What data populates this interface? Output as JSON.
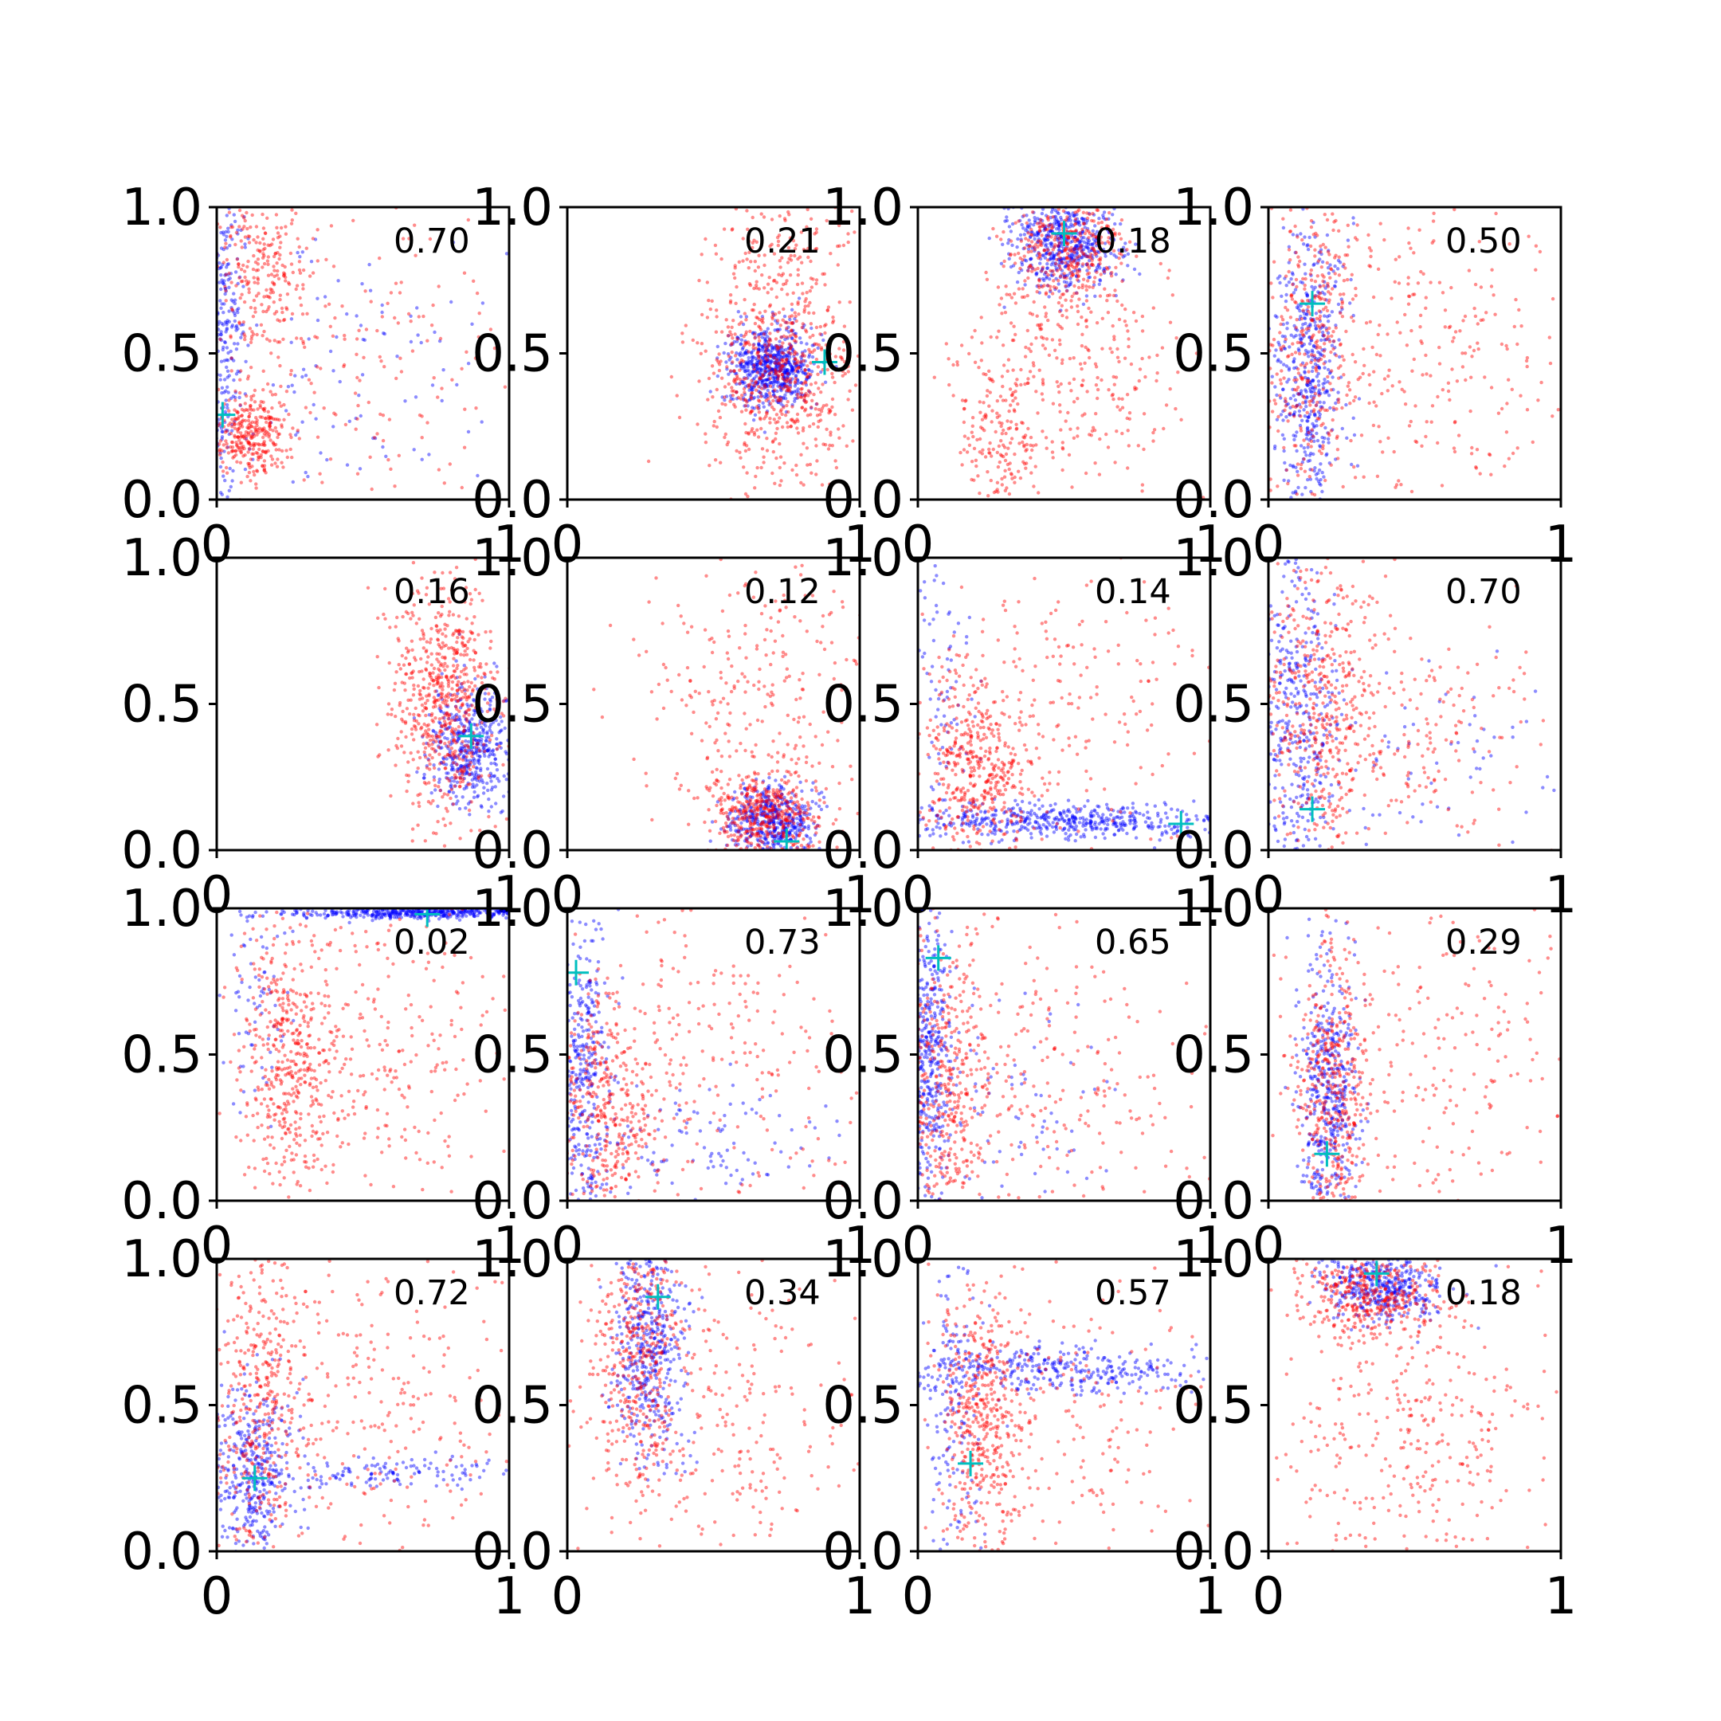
{
  "chart_data": {
    "type": "scatter",
    "layout": "4x4 grid of scatter subplots",
    "colors": {
      "series_a": "#0000ff",
      "series_b": "#ff0000",
      "marker": "#00bfbf",
      "axes": "#000000"
    },
    "xlim": [
      0,
      1
    ],
    "ylim": [
      0,
      1
    ],
    "x_ticks": [
      "0",
      "1"
    ],
    "y_ticks": [
      "0.0",
      "0.5",
      "1.0"
    ],
    "grid": false,
    "legend": "none",
    "panels": [
      {
        "annotation": "0.70",
        "marker": [
          0.02,
          0.29
        ],
        "red": [
          {
            "cx": 0.12,
            "cy": 0.22,
            "sx": 0.07,
            "sy": 0.08,
            "n": 320
          },
          {
            "cx": 0.15,
            "cy": 0.78,
            "sx": 0.09,
            "sy": 0.14,
            "n": 260
          },
          {
            "cx": 0.55,
            "cy": 0.45,
            "sx": 0.3,
            "sy": 0.3,
            "n": 180
          }
        ],
        "blue": [
          {
            "cx": 0.03,
            "cy": 0.55,
            "sx": 0.03,
            "sy": 0.28,
            "n": 260
          },
          {
            "cx": 0.45,
            "cy": 0.45,
            "sx": 0.3,
            "sy": 0.28,
            "n": 120
          }
        ]
      },
      {
        "annotation": "0.21",
        "marker": [
          0.88,
          0.47
        ],
        "red": [
          {
            "cx": 0.72,
            "cy": 0.42,
            "sx": 0.13,
            "sy": 0.17,
            "n": 650
          },
          {
            "cx": 0.75,
            "cy": 0.85,
            "sx": 0.12,
            "sy": 0.12,
            "n": 120
          }
        ],
        "blue": [
          {
            "cx": 0.7,
            "cy": 0.45,
            "sx": 0.07,
            "sy": 0.07,
            "n": 650
          }
        ]
      },
      {
        "annotation": "0.18",
        "marker": [
          0.5,
          0.91
        ],
        "red": [
          {
            "cx": 0.5,
            "cy": 0.85,
            "sx": 0.1,
            "sy": 0.1,
            "n": 350
          },
          {
            "cx": 0.5,
            "cy": 0.45,
            "sx": 0.2,
            "sy": 0.22,
            "n": 350
          },
          {
            "cx": 0.28,
            "cy": 0.2,
            "sx": 0.06,
            "sy": 0.1,
            "n": 120
          }
        ],
        "blue": [
          {
            "cx": 0.5,
            "cy": 0.88,
            "sx": 0.09,
            "sy": 0.08,
            "n": 550
          }
        ]
      },
      {
        "annotation": "0.50",
        "marker": [
          0.15,
          0.67
        ],
        "red": [
          {
            "cx": 0.15,
            "cy": 0.55,
            "sx": 0.08,
            "sy": 0.28,
            "n": 380
          },
          {
            "cx": 0.55,
            "cy": 0.5,
            "sx": 0.25,
            "sy": 0.28,
            "n": 260
          }
        ],
        "blue": [
          {
            "cx": 0.14,
            "cy": 0.45,
            "sx": 0.06,
            "sy": 0.25,
            "n": 480
          }
        ]
      },
      {
        "annotation": "0.16",
        "marker": [
          0.87,
          0.39
        ],
        "red": [
          {
            "cx": 0.78,
            "cy": 0.5,
            "sx": 0.09,
            "sy": 0.2,
            "n": 650
          }
        ],
        "blue": [
          {
            "cx": 0.87,
            "cy": 0.36,
            "sx": 0.07,
            "sy": 0.1,
            "n": 460
          }
        ]
      },
      {
        "annotation": "0.12",
        "marker": [
          0.75,
          0.03
        ],
        "red": [
          {
            "cx": 0.68,
            "cy": 0.12,
            "sx": 0.1,
            "sy": 0.08,
            "n": 450
          },
          {
            "cx": 0.65,
            "cy": 0.55,
            "sx": 0.2,
            "sy": 0.25,
            "n": 260
          }
        ],
        "blue": [
          {
            "cx": 0.7,
            "cy": 0.1,
            "sx": 0.07,
            "sy": 0.06,
            "n": 480
          }
        ]
      },
      {
        "annotation": "0.14",
        "marker": [
          0.9,
          0.09
        ],
        "red": [
          {
            "cx": 0.2,
            "cy": 0.28,
            "sx": 0.1,
            "sy": 0.15,
            "n": 450
          },
          {
            "cx": 0.45,
            "cy": 0.5,
            "sx": 0.28,
            "sy": 0.3,
            "n": 220
          }
        ],
        "blue": [
          {
            "cx": 0.5,
            "cy": 0.1,
            "sx": 0.28,
            "sy": 0.03,
            "n": 500
          },
          {
            "cx": 0.08,
            "cy": 0.6,
            "sx": 0.05,
            "sy": 0.25,
            "n": 80
          }
        ]
      },
      {
        "annotation": "0.70",
        "marker": [
          0.15,
          0.14
        ],
        "red": [
          {
            "cx": 0.18,
            "cy": 0.5,
            "sx": 0.1,
            "sy": 0.25,
            "n": 450
          },
          {
            "cx": 0.5,
            "cy": 0.4,
            "sx": 0.25,
            "sy": 0.2,
            "n": 180
          }
        ],
        "blue": [
          {
            "cx": 0.1,
            "cy": 0.45,
            "sx": 0.07,
            "sy": 0.28,
            "n": 380
          },
          {
            "cx": 0.5,
            "cy": 0.3,
            "sx": 0.25,
            "sy": 0.15,
            "n": 80
          }
        ]
      },
      {
        "annotation": "0.02",
        "marker": [
          0.72,
          0.98
        ],
        "red": [
          {
            "cx": 0.25,
            "cy": 0.5,
            "sx": 0.08,
            "sy": 0.25,
            "n": 420
          },
          {
            "cx": 0.55,
            "cy": 0.5,
            "sx": 0.25,
            "sy": 0.28,
            "n": 320
          }
        ],
        "blue": [
          {
            "cx": 0.7,
            "cy": 0.985,
            "sx": 0.22,
            "sy": 0.01,
            "n": 450
          },
          {
            "cx": 0.12,
            "cy": 0.7,
            "sx": 0.06,
            "sy": 0.2,
            "n": 70
          }
        ]
      },
      {
        "annotation": "0.73",
        "marker": [
          0.03,
          0.78
        ],
        "red": [
          {
            "cx": 0.12,
            "cy": 0.3,
            "sx": 0.1,
            "sy": 0.2,
            "n": 420
          },
          {
            "cx": 0.5,
            "cy": 0.5,
            "sx": 0.28,
            "sy": 0.28,
            "n": 250
          }
        ],
        "blue": [
          {
            "cx": 0.05,
            "cy": 0.4,
            "sx": 0.05,
            "sy": 0.28,
            "n": 380
          },
          {
            "cx": 0.45,
            "cy": 0.2,
            "sx": 0.25,
            "sy": 0.1,
            "n": 120
          }
        ]
      },
      {
        "annotation": "0.65",
        "marker": [
          0.07,
          0.83
        ],
        "red": [
          {
            "cx": 0.1,
            "cy": 0.35,
            "sx": 0.08,
            "sy": 0.28,
            "n": 420
          },
          {
            "cx": 0.5,
            "cy": 0.45,
            "sx": 0.28,
            "sy": 0.28,
            "n": 250
          }
        ],
        "blue": [
          {
            "cx": 0.04,
            "cy": 0.5,
            "sx": 0.04,
            "sy": 0.28,
            "n": 420
          },
          {
            "cx": 0.3,
            "cy": 0.3,
            "sx": 0.2,
            "sy": 0.2,
            "n": 90
          }
        ]
      },
      {
        "annotation": "0.29",
        "marker": [
          0.2,
          0.16
        ],
        "red": [
          {
            "cx": 0.22,
            "cy": 0.35,
            "sx": 0.06,
            "sy": 0.28,
            "n": 420
          },
          {
            "cx": 0.55,
            "cy": 0.45,
            "sx": 0.25,
            "sy": 0.28,
            "n": 250
          }
        ],
        "blue": [
          {
            "cx": 0.2,
            "cy": 0.35,
            "sx": 0.05,
            "sy": 0.22,
            "n": 480
          }
        ]
      },
      {
        "annotation": "0.72",
        "marker": [
          0.13,
          0.25
        ],
        "red": [
          {
            "cx": 0.15,
            "cy": 0.5,
            "sx": 0.08,
            "sy": 0.28,
            "n": 420
          },
          {
            "cx": 0.55,
            "cy": 0.5,
            "sx": 0.25,
            "sy": 0.28,
            "n": 230
          }
        ],
        "blue": [
          {
            "cx": 0.12,
            "cy": 0.28,
            "sx": 0.07,
            "sy": 0.15,
            "n": 380
          },
          {
            "cx": 0.55,
            "cy": 0.27,
            "sx": 0.25,
            "sy": 0.03,
            "n": 140
          }
        ]
      },
      {
        "annotation": "0.34",
        "marker": [
          0.31,
          0.87
        ],
        "red": [
          {
            "cx": 0.25,
            "cy": 0.65,
            "sx": 0.08,
            "sy": 0.25,
            "n": 420
          },
          {
            "cx": 0.55,
            "cy": 0.45,
            "sx": 0.25,
            "sy": 0.28,
            "n": 250
          }
        ],
        "blue": [
          {
            "cx": 0.28,
            "cy": 0.72,
            "sx": 0.06,
            "sy": 0.2,
            "n": 480
          }
        ]
      },
      {
        "annotation": "0.57",
        "marker": [
          0.18,
          0.3
        ],
        "red": [
          {
            "cx": 0.22,
            "cy": 0.45,
            "sx": 0.07,
            "sy": 0.25,
            "n": 450
          },
          {
            "cx": 0.5,
            "cy": 0.45,
            "sx": 0.25,
            "sy": 0.28,
            "n": 220
          }
        ],
        "blue": [
          {
            "cx": 0.45,
            "cy": 0.62,
            "sx": 0.25,
            "sy": 0.04,
            "n": 350
          },
          {
            "cx": 0.12,
            "cy": 0.5,
            "sx": 0.05,
            "sy": 0.25,
            "n": 150
          }
        ]
      },
      {
        "annotation": "0.18",
        "marker": [
          0.37,
          0.95
        ],
        "red": [
          {
            "cx": 0.35,
            "cy": 0.88,
            "sx": 0.12,
            "sy": 0.08,
            "n": 420
          },
          {
            "cx": 0.45,
            "cy": 0.35,
            "sx": 0.25,
            "sy": 0.25,
            "n": 330
          }
        ],
        "blue": [
          {
            "cx": 0.4,
            "cy": 0.9,
            "sx": 0.1,
            "sy": 0.06,
            "n": 420
          }
        ]
      }
    ]
  }
}
